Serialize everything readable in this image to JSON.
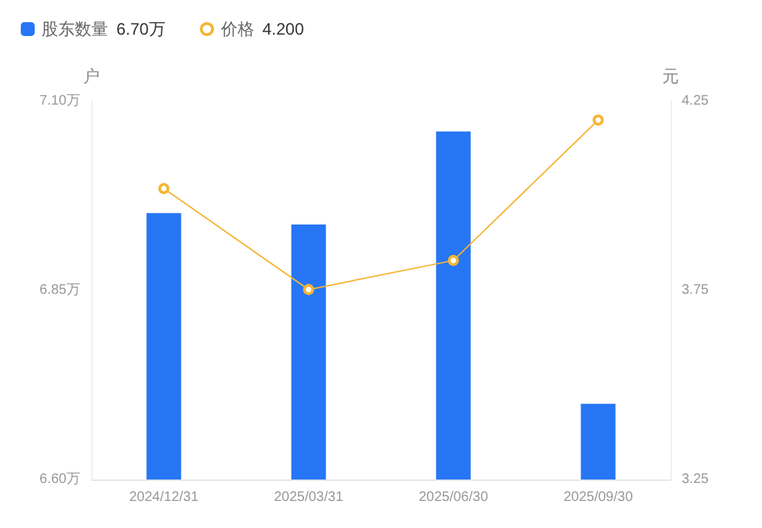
{
  "chart_data": {
    "type": "bar",
    "ylabel": "户",
    "y2label": "元",
    "categories": [
      "2024/12/31",
      "2025/03/31",
      "2025/06/30",
      "2025/09/30"
    ],
    "series": [
      {
        "name": "股东数量",
        "color": "#2676f5",
        "values": [
          6.952,
          6.937,
          7.06,
          6.7
        ]
      },
      {
        "name": "价格",
        "type": "line",
        "axis": "y2",
        "color": "#f5b433",
        "values": [
          4.019,
          3.752,
          3.829,
          4.2
        ]
      }
    ],
    "annotations": [
      "6.70万",
      "4.200"
    ],
    "ylim": [
      6.6,
      7.1
    ],
    "yticks": [
      {
        "value": 6.6,
        "label": "6.60万"
      },
      {
        "value": 6.85,
        "label": "6.85万"
      },
      {
        "value": 7.1,
        "label": "7.10万"
      }
    ],
    "y2lim": [
      3.25,
      4.25
    ],
    "y2ticks": [
      {
        "value": 3.25,
        "label": "3.25"
      },
      {
        "value": 3.75,
        "label": "3.75"
      },
      {
        "value": 4.25,
        "label": "4.25"
      }
    ],
    "legend": "top left",
    "marker": "circle",
    "grid": false
  }
}
